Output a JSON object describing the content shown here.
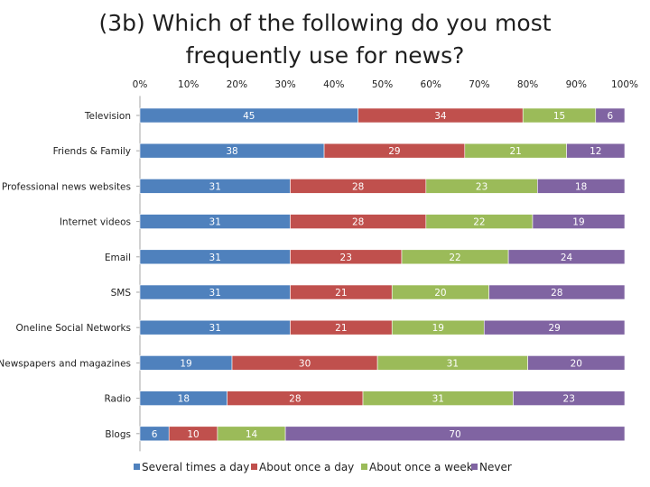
{
  "chart_data": {
    "type": "bar",
    "stacked": true,
    "orientation": "horizontal",
    "title": "(3b) Which of the following do you most frequently use for news?",
    "x_ticks": [
      "0%",
      "10%",
      "20%",
      "30%",
      "40%",
      "50%",
      "60%",
      "70%",
      "80%",
      "90%",
      "100%"
    ],
    "xlim": [
      0,
      100
    ],
    "categories": [
      "Television",
      "Friends & Family",
      "Professional news websites",
      "Internet videos",
      "Email",
      "SMS",
      "Oneline Social Networks",
      "Newspapers and magazines",
      "Radio",
      "Blogs"
    ],
    "series": [
      {
        "name": "Several times a day",
        "color": "#4f81bd",
        "label_color": "#ffffff",
        "values": [
          45,
          38,
          31,
          31,
          31,
          31,
          31,
          19,
          18,
          6
        ]
      },
      {
        "name": "About once a day",
        "color": "#c0504d",
        "label_color": "#ffffff",
        "values": [
          34,
          29,
          28,
          28,
          23,
          21,
          21,
          30,
          28,
          10
        ]
      },
      {
        "name": "About once a week",
        "color": "#9bbb59",
        "label_color": "#ffffff",
        "values": [
          15,
          21,
          23,
          22,
          22,
          20,
          19,
          31,
          31,
          14
        ]
      },
      {
        "name": "Never",
        "color": "#8064a2",
        "label_color": "#ffffff",
        "values": [
          6,
          12,
          18,
          19,
          24,
          28,
          29,
          20,
          23,
          70
        ]
      }
    ],
    "legend_position": "bottom",
    "grid": false
  }
}
